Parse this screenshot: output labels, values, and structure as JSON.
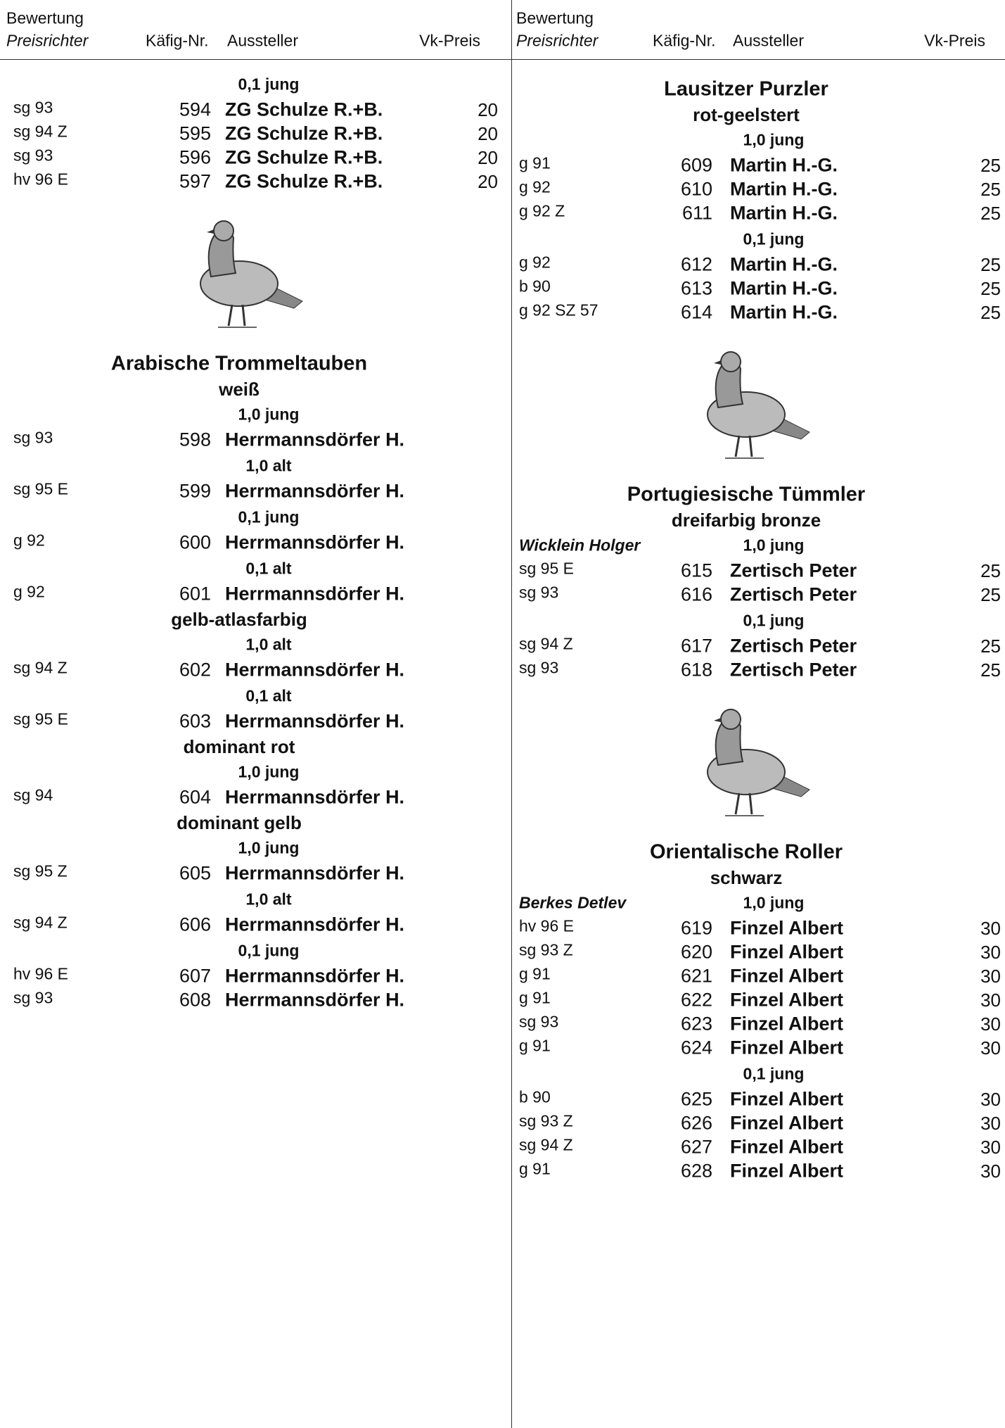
{
  "header": {
    "rating": "Bewertung",
    "judge": "Preisrichter",
    "cage": "Käfig-Nr.",
    "exhibitor": "Aussteller",
    "price": "Vk-Preis"
  },
  "columns": [
    {
      "sections": [
        {
          "colors": [
            {
              "classes": [
                {
                  "class": "0,1 jung",
                  "rows": [
                    [
                      "sg 93",
                      594,
                      "ZG Schulze R.+B.",
                      20
                    ],
                    [
                      "sg 94 Z",
                      595,
                      "ZG Schulze R.+B.",
                      20
                    ],
                    [
                      "sg 93",
                      596,
                      "ZG Schulze R.+B.",
                      20
                    ],
                    [
                      "hv 96 E",
                      597,
                      "ZG Schulze R.+B.",
                      20
                    ]
                  ]
                }
              ]
            }
          ]
        },
        {
          "breed": "Arabische Trommeltauben",
          "colors": [
            {
              "color": "weiß",
              "classes": [
                {
                  "class": "1,0 jung",
                  "rows": [
                    [
                      "sg 93",
                      598,
                      "Herrmannsdörfer H."
                    ]
                  ]
                },
                {
                  "class": "1,0 alt",
                  "rows": [
                    [
                      "sg 95 E",
                      599,
                      "Herrmannsdörfer H."
                    ]
                  ]
                },
                {
                  "class": "0,1 jung",
                  "rows": [
                    [
                      "g 92",
                      600,
                      "Herrmannsdörfer H."
                    ]
                  ]
                },
                {
                  "class": "0,1 alt",
                  "rows": [
                    [
                      "g 92",
                      601,
                      "Herrmannsdörfer H."
                    ]
                  ]
                }
              ]
            },
            {
              "color": "gelb-atlasfarbig",
              "classes": [
                {
                  "class": "1,0 alt",
                  "rows": [
                    [
                      "sg 94 Z",
                      602,
                      "Herrmannsdörfer H."
                    ]
                  ]
                },
                {
                  "class": "0,1 alt",
                  "rows": [
                    [
                      "sg 95 E",
                      603,
                      "Herrmannsdörfer H."
                    ]
                  ]
                }
              ]
            },
            {
              "color": "dominant rot",
              "classes": [
                {
                  "class": "1,0 jung",
                  "rows": [
                    [
                      "sg 94",
                      604,
                      "Herrmannsdörfer H."
                    ]
                  ]
                }
              ]
            },
            {
              "color": "dominant gelb",
              "classes": [
                {
                  "class": "1,0 jung",
                  "rows": [
                    [
                      "sg 95 Z",
                      605,
                      "Herrmannsdörfer H."
                    ]
                  ]
                },
                {
                  "class": "1,0 alt",
                  "rows": [
                    [
                      "sg 94 Z",
                      606,
                      "Herrmannsdörfer H."
                    ]
                  ]
                },
                {
                  "class": "0,1 jung",
                  "rows": [
                    [
                      "hv 96 E",
                      607,
                      "Herrmannsdörfer H."
                    ],
                    [
                      "sg 93",
                      608,
                      "Herrmannsdörfer H."
                    ]
                  ]
                }
              ]
            }
          ]
        }
      ]
    },
    {
      "sections": [
        {
          "breed": "Lausitzer Purzler",
          "colors": [
            {
              "color": "rot-geelstert",
              "classes": [
                {
                  "class": "1,0 jung",
                  "rows": [
                    [
                      "g 91",
                      609,
                      "Martin H.-G.",
                      25
                    ],
                    [
                      "g 92",
                      610,
                      "Martin H.-G.",
                      25
                    ],
                    [
                      "g 92 Z",
                      611,
                      "Martin H.-G.",
                      25
                    ]
                  ]
                },
                {
                  "class": "0,1 jung",
                  "rows": [
                    [
                      "g 92",
                      612,
                      "Martin H.-G.",
                      25
                    ],
                    [
                      "b 90",
                      613,
                      "Martin H.-G.",
                      25
                    ],
                    [
                      "g 92 SZ 57",
                      614,
                      "Martin H.-G.",
                      25
                    ]
                  ]
                }
              ]
            }
          ]
        },
        {
          "breed": "Portugiesische Tümmler",
          "colors": [
            {
              "color": "dreifarbig bronze",
              "judge": "Wicklein Holger",
              "classes": [
                {
                  "class": "1,0 jung",
                  "rows": [
                    [
                      "sg 95 E",
                      615,
                      "Zertisch Peter",
                      25
                    ],
                    [
                      "sg 93",
                      616,
                      "Zertisch Peter",
                      25
                    ]
                  ]
                },
                {
                  "class": "0,1 jung",
                  "rows": [
                    [
                      "sg 94 Z",
                      617,
                      "Zertisch Peter",
                      25
                    ],
                    [
                      "sg 93",
                      618,
                      "Zertisch Peter",
                      25
                    ]
                  ]
                }
              ]
            }
          ]
        },
        {
          "breed": "Orientalische Roller",
          "colors": [
            {
              "color": "schwarz",
              "judge": "Berkes Detlev",
              "classes": [
                {
                  "class": "1,0 jung",
                  "rows": [
                    [
                      "hv 96 E",
                      619,
                      "Finzel Albert",
                      30
                    ],
                    [
                      "sg 93 Z",
                      620,
                      "Finzel Albert",
                      30
                    ],
                    [
                      "g 91",
                      621,
                      "Finzel Albert",
                      30
                    ],
                    [
                      "g 91",
                      622,
                      "Finzel Albert",
                      30
                    ],
                    [
                      "sg 93",
                      623,
                      "Finzel Albert",
                      30
                    ],
                    [
                      "g 91",
                      624,
                      "Finzel Albert",
                      30
                    ]
                  ]
                },
                {
                  "class": "0,1 jung",
                  "rows": [
                    [
                      "b 90",
                      625,
                      "Finzel Albert",
                      30
                    ],
                    [
                      "sg 93 Z",
                      626,
                      "Finzel Albert",
                      30
                    ],
                    [
                      "sg 94 Z",
                      627,
                      "Finzel Albert",
                      30
                    ],
                    [
                      "g 91",
                      628,
                      "Finzel Albert",
                      30
                    ]
                  ]
                }
              ]
            }
          ]
        }
      ]
    }
  ]
}
